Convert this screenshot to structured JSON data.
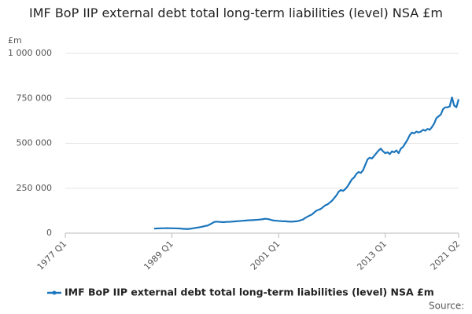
{
  "chart_data": {
    "type": "line",
    "title": "IMF BoP IIP external debt total long-term liabilities (level) NSA £m",
    "y_unit": "£m",
    "source": "Source:",
    "xlim": [
      "1977 Q1",
      "2021 Q2"
    ],
    "xticks": [
      "1977 Q1",
      "1989 Q1",
      "2001 Q1",
      "2013 Q1",
      "2021 Q2"
    ],
    "ylim": [
      0,
      1000000
    ],
    "yticks": [
      0,
      {
        "value": 250000,
        "label": "250 000"
      },
      {
        "value": 500000,
        "label": "500 000"
      },
      {
        "value": 750000,
        "label": "750 000"
      },
      {
        "value": 1000000,
        "label": "1 000 000"
      }
    ],
    "grid": true,
    "legend": "bottom",
    "x": [
      "1987 Q1",
      "1987 Q2",
      "1987 Q3",
      "1987 Q4",
      "1988 Q1",
      "1988 Q2",
      "1988 Q3",
      "1988 Q4",
      "1989 Q1",
      "1989 Q2",
      "1989 Q3",
      "1989 Q4",
      "1990 Q1",
      "1990 Q2",
      "1990 Q3",
      "1990 Q4",
      "1991 Q1",
      "1991 Q2",
      "1991 Q3",
      "1991 Q4",
      "1992 Q1",
      "1992 Q2",
      "1992 Q3",
      "1992 Q4",
      "1993 Q1",
      "1993 Q2",
      "1993 Q3",
      "1993 Q4",
      "1994 Q1",
      "1994 Q2",
      "1994 Q3",
      "1994 Q4",
      "1995 Q1",
      "1995 Q2",
      "1995 Q3",
      "1995 Q4",
      "1996 Q1",
      "1996 Q2",
      "1996 Q3",
      "1996 Q4",
      "1997 Q1",
      "1997 Q2",
      "1997 Q3",
      "1997 Q4",
      "1998 Q1",
      "1998 Q2",
      "1998 Q3",
      "1998 Q4",
      "1999 Q1",
      "1999 Q2",
      "1999 Q3",
      "1999 Q4",
      "2000 Q1",
      "2000 Q2",
      "2000 Q3",
      "2000 Q4",
      "2001 Q1",
      "2001 Q2",
      "2001 Q3",
      "2001 Q4",
      "2002 Q1",
      "2002 Q2",
      "2002 Q3",
      "2002 Q4",
      "2003 Q1",
      "2003 Q2",
      "2003 Q3",
      "2003 Q4",
      "2004 Q1",
      "2004 Q2",
      "2004 Q3",
      "2004 Q4",
      "2005 Q1",
      "2005 Q2",
      "2005 Q3",
      "2005 Q4",
      "2006 Q1",
      "2006 Q2",
      "2006 Q3",
      "2006 Q4",
      "2007 Q1",
      "2007 Q2",
      "2007 Q3",
      "2007 Q4",
      "2008 Q1",
      "2008 Q2",
      "2008 Q3",
      "2008 Q4",
      "2009 Q1",
      "2009 Q2",
      "2009 Q3",
      "2009 Q4",
      "2010 Q1",
      "2010 Q2",
      "2010 Q3",
      "2010 Q4",
      "2011 Q1",
      "2011 Q2",
      "2011 Q3",
      "2011 Q4",
      "2012 Q1",
      "2012 Q2",
      "2012 Q3",
      "2012 Q4",
      "2013 Q1",
      "2013 Q2",
      "2013 Q3",
      "2013 Q4",
      "2014 Q1",
      "2014 Q2",
      "2014 Q3",
      "2014 Q4",
      "2015 Q1",
      "2015 Q2",
      "2015 Q3",
      "2015 Q4",
      "2016 Q1",
      "2016 Q2",
      "2016 Q3",
      "2016 Q4",
      "2017 Q1",
      "2017 Q2",
      "2017 Q3",
      "2017 Q4",
      "2018 Q1",
      "2018 Q2",
      "2018 Q3",
      "2018 Q4",
      "2019 Q1",
      "2019 Q2",
      "2019 Q3",
      "2019 Q4",
      "2020 Q1",
      "2020 Q2",
      "2020 Q3",
      "2020 Q4",
      "2021 Q1",
      "2021 Q2"
    ],
    "series": [
      {
        "name": "IMF BoP IIP external debt total long-term liabilities (level) NSA £m",
        "color": "#1a75bc",
        "values": [
          25000,
          26000,
          26500,
          27000,
          27000,
          27500,
          28000,
          27500,
          27000,
          27000,
          26500,
          26000,
          25500,
          24000,
          23500,
          23000,
          24000,
          26000,
          28000,
          30000,
          32000,
          34000,
          37000,
          40000,
          42000,
          48000,
          55000,
          62000,
          64000,
          63000,
          62000,
          61000,
          62000,
          63000,
          63000,
          64000,
          65000,
          66000,
          67000,
          68000,
          69000,
          70000,
          71000,
          72000,
          72000,
          73000,
          74000,
          75000,
          76000,
          78000,
          80000,
          79000,
          76000,
          72000,
          70000,
          69000,
          68000,
          67000,
          66000,
          66000,
          65000,
          64000,
          64000,
          65000,
          66000,
          68000,
          72000,
          76000,
          85000,
          92000,
          98000,
          104000,
          115000,
          125000,
          130000,
          135000,
          145000,
          155000,
          160000,
          170000,
          180000,
          195000,
          210000,
          230000,
          240000,
          235000,
          245000,
          260000,
          280000,
          300000,
          310000,
          330000,
          340000,
          335000,
          350000,
          380000,
          410000,
          420000,
          415000,
          430000,
          445000,
          460000,
          470000,
          455000,
          445000,
          450000,
          440000,
          455000,
          450000,
          460000,
          445000,
          470000,
          480000,
          500000,
          520000,
          545000,
          560000,
          555000,
          565000,
          560000,
          565000,
          575000,
          570000,
          580000,
          575000,
          590000,
          610000,
          640000,
          650000,
          660000,
          690000,
          700000,
          700000,
          705000,
          755000,
          710000,
          700000,
          745000
        ]
      }
    ]
  }
}
